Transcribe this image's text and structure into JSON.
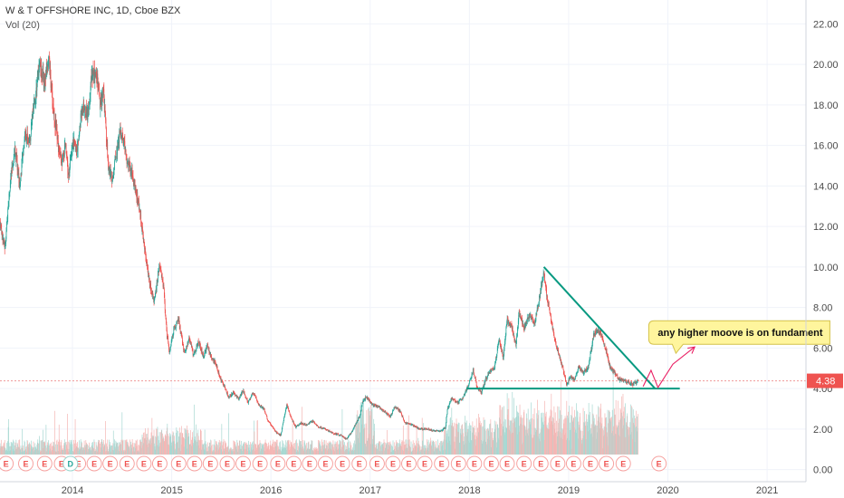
{
  "header": {
    "title": "W & T OFFSHORE INC, 1D, Cboe BZX",
    "volume_label": "Vol (20)"
  },
  "chart_data": {
    "type": "candlestick",
    "title": "W & T OFFSHORE INC, 1D, Cboe BZX",
    "y_ticks": [
      "22.00",
      "20.00",
      "18.00",
      "16.00",
      "14.00",
      "12.00",
      "10.00",
      "8.00",
      "6.00",
      "4.00",
      "2.00",
      "0.00"
    ],
    "y_tick_values": [
      22,
      20,
      18,
      16,
      14,
      12,
      10,
      8,
      6,
      4,
      2,
      0
    ],
    "x_ticks": [
      "2014",
      "2015",
      "2016",
      "2017",
      "2018",
      "2019",
      "2020",
      "2021"
    ],
    "x_tick_values": [
      2014,
      2015,
      2016,
      2017,
      2018,
      2019,
      2020,
      2021
    ],
    "ylim": [
      -0.6,
      23
    ],
    "xlim": [
      2013.27,
      2021.3
    ],
    "last_price": "4.38",
    "last_price_value": 4.38,
    "colors": {
      "up": "#26a69a",
      "down": "#ef5350",
      "annotation": "#089981",
      "arrow": "#e91e63",
      "note_bg": "#fff59d"
    },
    "price_path": [
      [
        2013.27,
        12.2
      ],
      [
        2013.32,
        10.9
      ],
      [
        2013.36,
        13.6
      ],
      [
        2013.42,
        15.9
      ],
      [
        2013.47,
        14.0
      ],
      [
        2013.52,
        16.6
      ],
      [
        2013.57,
        16.3
      ],
      [
        2013.62,
        18.2
      ],
      [
        2013.67,
        20.1
      ],
      [
        2013.72,
        19.0
      ],
      [
        2013.76,
        20.4
      ],
      [
        2013.8,
        18.1
      ],
      [
        2013.84,
        16.6
      ],
      [
        2013.89,
        15.0
      ],
      [
        2013.93,
        16.0
      ],
      [
        2013.96,
        14.3
      ],
      [
        2014.0,
        16.2
      ],
      [
        2014.05,
        15.8
      ],
      [
        2014.1,
        18.0
      ],
      [
        2014.15,
        17.5
      ],
      [
        2014.2,
        19.6
      ],
      [
        2014.25,
        19.3
      ],
      [
        2014.28,
        17.8
      ],
      [
        2014.31,
        18.9
      ],
      [
        2014.36,
        15.0
      ],
      [
        2014.4,
        14.3
      ],
      [
        2014.45,
        15.9
      ],
      [
        2014.48,
        16.6
      ],
      [
        2014.52,
        16.1
      ],
      [
        2014.56,
        15.0
      ],
      [
        2014.6,
        14.6
      ],
      [
        2014.63,
        13.8
      ],
      [
        2014.66,
        13.3
      ],
      [
        2014.7,
        12.0
      ],
      [
        2014.74,
        10.5
      ],
      [
        2014.78,
        9.2
      ],
      [
        2014.82,
        8.3
      ],
      [
        2014.85,
        9.1
      ],
      [
        2014.88,
        10.2
      ],
      [
        2014.92,
        8.9
      ],
      [
        2014.95,
        6.7
      ],
      [
        2014.98,
        5.8
      ],
      [
        2015.02,
        6.9
      ],
      [
        2015.07,
        7.4
      ],
      [
        2015.1,
        6.5
      ],
      [
        2015.13,
        5.7
      ],
      [
        2015.18,
        6.5
      ],
      [
        2015.22,
        5.6
      ],
      [
        2015.27,
        6.3
      ],
      [
        2015.32,
        5.6
      ],
      [
        2015.36,
        6.1
      ],
      [
        2015.4,
        5.5
      ],
      [
        2015.44,
        5.3
      ],
      [
        2015.48,
        4.6
      ],
      [
        2015.53,
        4.1
      ],
      [
        2015.57,
        3.6
      ],
      [
        2015.62,
        3.8
      ],
      [
        2015.67,
        3.5
      ],
      [
        2015.72,
        3.9
      ],
      [
        2015.77,
        3.3
      ],
      [
        2015.82,
        3.8
      ],
      [
        2015.88,
        3.2
      ],
      [
        2015.93,
        3.0
      ],
      [
        2015.97,
        2.4
      ],
      [
        2016.02,
        2.1
      ],
      [
        2016.06,
        1.8
      ],
      [
        2016.1,
        1.7
      ],
      [
        2016.13,
        2.5
      ],
      [
        2016.16,
        3.2
      ],
      [
        2016.2,
        2.6
      ],
      [
        2016.25,
        2.1
      ],
      [
        2016.3,
        2.3
      ],
      [
        2016.36,
        2.2
      ],
      [
        2016.42,
        2.4
      ],
      [
        2016.48,
        2.1
      ],
      [
        2016.55,
        2.0
      ],
      [
        2016.62,
        1.8
      ],
      [
        2016.7,
        1.7
      ],
      [
        2016.76,
        1.5
      ],
      [
        2016.82,
        1.9
      ],
      [
        2016.86,
        2.3
      ],
      [
        2016.9,
        2.7
      ],
      [
        2016.92,
        3.3
      ],
      [
        2016.96,
        3.6
      ],
      [
        2017.02,
        3.2
      ],
      [
        2017.08,
        3.1
      ],
      [
        2017.14,
        2.9
      ],
      [
        2017.2,
        2.6
      ],
      [
        2017.25,
        3.1
      ],
      [
        2017.3,
        2.9
      ],
      [
        2017.35,
        2.3
      ],
      [
        2017.42,
        2.2
      ],
      [
        2017.5,
        2.0
      ],
      [
        2017.58,
        2.0
      ],
      [
        2017.65,
        1.9
      ],
      [
        2017.72,
        1.9
      ],
      [
        2017.76,
        2.1
      ],
      [
        2017.78,
        3.0
      ],
      [
        2017.82,
        3.5
      ],
      [
        2017.88,
        3.3
      ],
      [
        2017.94,
        3.6
      ],
      [
        2018.0,
        4.3
      ],
      [
        2018.04,
        4.9
      ],
      [
        2018.08,
        4.0
      ],
      [
        2018.12,
        3.8
      ],
      [
        2018.16,
        4.4
      ],
      [
        2018.2,
        4.8
      ],
      [
        2018.25,
        5.0
      ],
      [
        2018.3,
        6.4
      ],
      [
        2018.34,
        5.5
      ],
      [
        2018.38,
        7.4
      ],
      [
        2018.43,
        7.0
      ],
      [
        2018.47,
        6.1
      ],
      [
        2018.5,
        7.8
      ],
      [
        2018.55,
        7.0
      ],
      [
        2018.6,
        7.6
      ],
      [
        2018.66,
        7.3
      ],
      [
        2018.7,
        8.3
      ],
      [
        2018.75,
        9.8
      ],
      [
        2018.78,
        8.6
      ],
      [
        2018.82,
        7.4
      ],
      [
        2018.86,
        6.4
      ],
      [
        2018.9,
        5.7
      ],
      [
        2018.94,
        5.0
      ],
      [
        2018.98,
        4.2
      ],
      [
        2019.02,
        4.6
      ],
      [
        2019.06,
        4.4
      ],
      [
        2019.1,
        5.1
      ],
      [
        2019.15,
        4.8
      ],
      [
        2019.2,
        5.1
      ],
      [
        2019.25,
        6.6
      ],
      [
        2019.29,
        6.9
      ],
      [
        2019.33,
        6.7
      ],
      [
        2019.38,
        5.8
      ],
      [
        2019.42,
        5.0
      ],
      [
        2019.46,
        4.8
      ],
      [
        2019.5,
        4.5
      ],
      [
        2019.55,
        4.4
      ],
      [
        2019.6,
        4.3
      ],
      [
        2019.65,
        4.2
      ],
      [
        2019.7,
        4.38
      ]
    ],
    "annotations": {
      "resistance_line": [
        [
          2019.71,
          4.0
        ],
        [
          2019.92,
          4.0
        ]
      ],
      "triangle_diagonal": [
        [
          2018.75,
          10.0
        ],
        [
          2019.87,
          4.0
        ]
      ],
      "triangle_base": [
        [
          2017.97,
          4.0
        ],
        [
          2020.12,
          4.0
        ]
      ],
      "note": "any higher moove is  on fundament",
      "note_anchor": [
        2019.88,
        6.9
      ],
      "arrow_path": [
        [
          2019.75,
          4.1
        ],
        [
          2019.83,
          4.9
        ],
        [
          2019.9,
          4.05
        ],
        [
          2020.05,
          5.2
        ],
        [
          2020.27,
          6.05
        ]
      ]
    },
    "earnings_markers": {
      "label": "E",
      "dividend_label": "D",
      "dividend_x": [
        2013.98
      ],
      "past_x": [
        2013.33,
        2013.53,
        2013.72,
        2013.89,
        2014.06,
        2014.22,
        2014.38,
        2014.55,
        2014.72,
        2014.88,
        2015.07,
        2015.23,
        2015.39,
        2015.56,
        2015.72,
        2015.89,
        2016.07,
        2016.23,
        2016.39,
        2016.55,
        2016.72,
        2016.89,
        2017.07,
        2017.23,
        2017.39,
        2017.55,
        2017.72,
        2017.89,
        2018.05,
        2018.22,
        2018.38,
        2018.55,
        2018.72,
        2018.89,
        2019.05,
        2019.22,
        2019.38,
        2019.55
      ],
      "future_x": [
        2019.91
      ]
    }
  }
}
